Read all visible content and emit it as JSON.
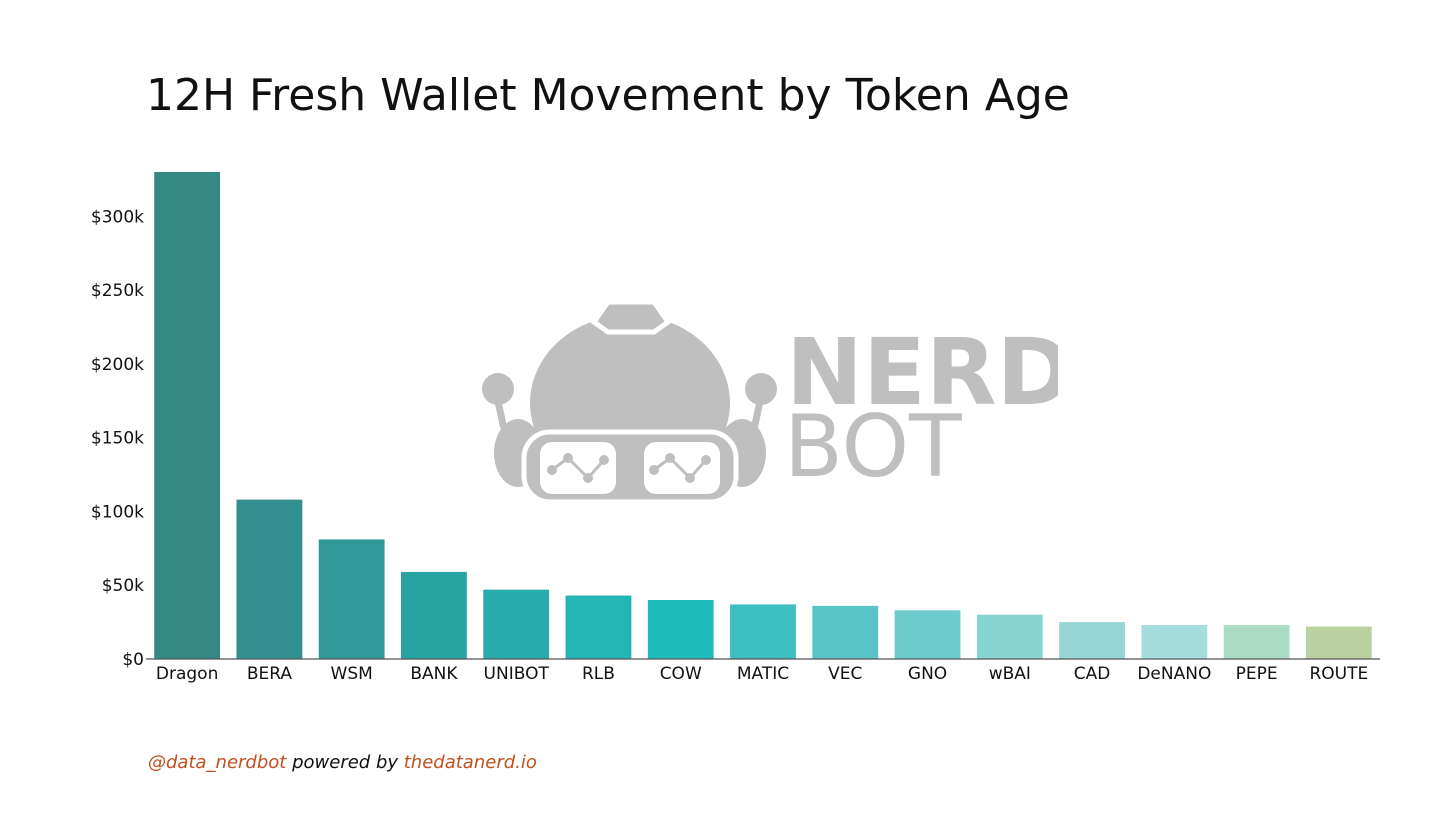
{
  "chart_data": {
    "type": "bar",
    "title": "12H Fresh Wallet Movement by Token Age",
    "xlabel": "",
    "ylabel": "",
    "categories": [
      "Dragon",
      "BERA",
      "WSM",
      "BANK",
      "UNIBOT",
      "RLB",
      "COW",
      "MATIC",
      "VEC",
      "GNO",
      "wBAI",
      "CAD",
      "DeNANO",
      "PEPE",
      "ROUTE"
    ],
    "values": [
      330000,
      108000,
      81000,
      59000,
      47000,
      43000,
      40000,
      37000,
      36000,
      33000,
      30000,
      25000,
      23000,
      23000,
      22000
    ],
    "colors": [
      "#358985",
      "#338f8d",
      "#2e9996",
      "#27a3a2",
      "#26acac",
      "#23b4b4",
      "#20bcbb",
      "#3dbfbf",
      "#58c4c5",
      "#6ecbcb",
      "#87d2d2",
      "#98d6d6",
      "#a6dddd",
      "#acdcc6",
      "#bcd1a2"
    ],
    "ylim": [
      0,
      330000
    ],
    "yticks": [
      0,
      50000,
      100000,
      150000,
      200000,
      250000,
      300000
    ],
    "ytick_labels": [
      "$0",
      "$50k",
      "$100k",
      "$150k",
      "$200k",
      "$250k",
      "$300k"
    ],
    "grid": false,
    "legend": "none"
  },
  "watermark": {
    "line1": "NERD",
    "line2": "BOT",
    "color": "#bfbfbf"
  },
  "footer": {
    "handle": "@data_nerdbot",
    "powered": " powered by ",
    "site": "thedatanerd.io",
    "accent_color": "#c0501e"
  }
}
